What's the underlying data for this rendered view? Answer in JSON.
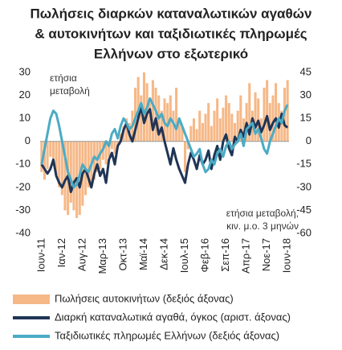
{
  "chart_data": {
    "type": "bar-line",
    "title": [
      "Πωλήσεις διαρκών καταναλωτικών αγαθών",
      "& αυτοκινήτων και ταξιδιωτικές πληρωμές",
      "Ελλήνων στο εξωτερικό"
    ],
    "annotation_left": [
      "ετήσια",
      "μεταβολή"
    ],
    "annotation_right": [
      "ετήσια μεταβολή,",
      "κιν. μ.ο. 3 μηνών"
    ],
    "categories": [
      "Ιουν-11",
      null,
      null,
      null,
      null,
      null,
      null,
      "Ιαν-12",
      null,
      null,
      null,
      null,
      null,
      null,
      "Αυγ-12",
      null,
      null,
      null,
      null,
      null,
      null,
      "Μαρ-13",
      null,
      null,
      null,
      null,
      null,
      null,
      "Οκτ-13",
      null,
      null,
      null,
      null,
      null,
      null,
      "Μαϊ-14",
      null,
      null,
      null,
      null,
      null,
      null,
      "Δεκ-14",
      null,
      null,
      null,
      null,
      null,
      null,
      "Ιουλ-15",
      null,
      null,
      null,
      null,
      null,
      null,
      "Φεβ-16",
      null,
      null,
      null,
      null,
      null,
      null,
      "Σεπ-16",
      null,
      null,
      null,
      null,
      null,
      null,
      "Απρ-17",
      null,
      null,
      null,
      null,
      null,
      null,
      "Νοε-17",
      null,
      null,
      null,
      null,
      null,
      null,
      "Ιουν-18"
    ],
    "series": [
      {
        "name": "Πωλήσεις αυτοκινήτων (δεξιός άξονας)",
        "kind": "bar",
        "axis": "y2",
        "color": "#f6b887",
        "values": [
          -20,
          -25,
          -18,
          -10,
          -15,
          -22,
          -30,
          -35,
          -45,
          -48,
          -40,
          -45,
          -50,
          -48,
          -42,
          -35,
          -30,
          -28,
          -25,
          -20,
          -18,
          -12,
          -15,
          -10,
          -5,
          -8,
          -3,
          5,
          10,
          15,
          12,
          20,
          35,
          42,
          30,
          45,
          38,
          25,
          40,
          35,
          30,
          20,
          28,
          25,
          30,
          20,
          35,
          15,
          10,
          -20,
          -5,
          10,
          15,
          8,
          20,
          12,
          18,
          25,
          10,
          20,
          28,
          15,
          22,
          30,
          25,
          18,
          12,
          20,
          30,
          15,
          25,
          38,
          20,
          32,
          28,
          15,
          35,
          40,
          25,
          30,
          38,
          25,
          20,
          35,
          40
        ]
      },
      {
        "name": "Διαρκή καταναλωτικά αγαθά, όγκος (αριστ. άξονας)",
        "kind": "line",
        "axis": "y",
        "color": "#1f3556",
        "values": [
          -10,
          -12,
          -14,
          -12,
          -8,
          -15,
          -18,
          -20,
          -17,
          -15,
          -22,
          -18,
          -16,
          -20,
          -14,
          -12,
          -16,
          -20,
          -14,
          -10,
          -15,
          -12,
          -18,
          -8,
          -5,
          -10,
          -2,
          0,
          5,
          8,
          3,
          0,
          5,
          10,
          15,
          8,
          12,
          14,
          5,
          10,
          3,
          6,
          0,
          -5,
          -10,
          -3,
          -8,
          -12,
          -15,
          -18,
          -10,
          -5,
          -8,
          -12,
          -6,
          -10,
          -8,
          -4,
          -12,
          -6,
          -2,
          -8,
          0,
          3,
          -3,
          -6,
          2,
          0,
          5,
          2,
          8,
          3,
          10,
          6,
          9,
          4,
          7,
          11,
          5,
          8,
          10,
          6,
          12,
          7,
          6
        ]
      },
      {
        "name": "Ταξιδιωτικές πληρωμές Ελλήνων (δεξιός άξονας)",
        "kind": "line",
        "axis": "y2",
        "color": "#4babc5",
        "values": [
          -15,
          -5,
          5,
          15,
          20,
          18,
          10,
          0,
          -10,
          -20,
          -25,
          -30,
          -28,
          -22,
          -15,
          -18,
          -20,
          -15,
          -10,
          -12,
          -8,
          -5,
          0,
          -3,
          5,
          8,
          2,
          10,
          15,
          12,
          8,
          10,
          15,
          20,
          25,
          18,
          22,
          28,
          24,
          20,
          15,
          18,
          12,
          10,
          15,
          12,
          8,
          15,
          10,
          5,
          0,
          -5,
          -10,
          -8,
          -5,
          -15,
          -20,
          -18,
          -12,
          -15,
          -8,
          -5,
          -10,
          -3,
          0,
          -5,
          -2,
          0,
          5,
          -3,
          8,
          10,
          12,
          5,
          8,
          2,
          -5,
          -8,
          0,
          5,
          10,
          15,
          12,
          20,
          24
        ]
      }
    ],
    "ylim": [
      -40,
      30
    ],
    "yticks": [
      -40,
      -30,
      -20,
      -10,
      0,
      10,
      20,
      30
    ],
    "y2lim": [
      -60,
      45
    ],
    "y2ticks": [
      -60,
      -45,
      -30,
      -15,
      0,
      15,
      30,
      45
    ]
  }
}
